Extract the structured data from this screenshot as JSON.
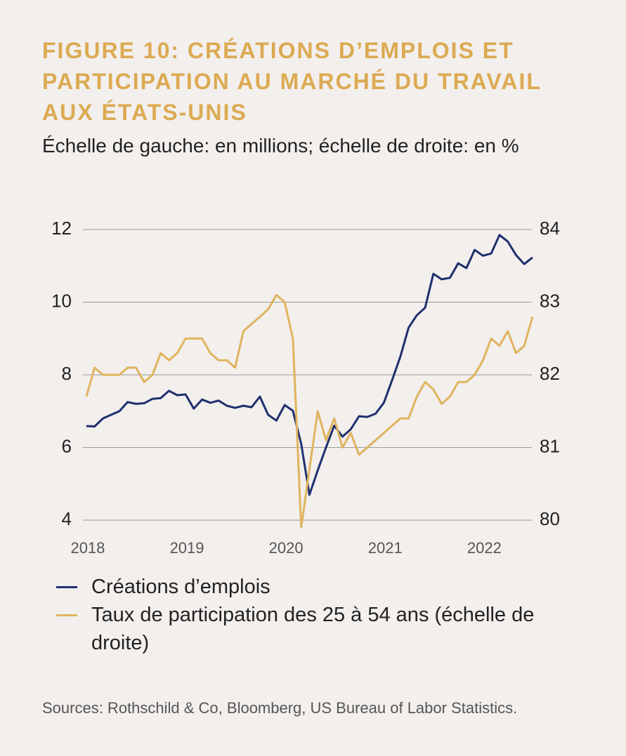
{
  "chart_data": {
    "type": "line",
    "title": "FIGURE 10: CRÉATIONS D’EMPLOIS ET PARTICIPATION AU MARCHÉ DU TRAVAIL AUX ÉTATS-UNIS",
    "subtitle": "Échelle de gauche: en millions; échelle de droite: en %",
    "source": "Sources: Rothschild & Co, Bloomberg, US Bureau of Labor Statistics.",
    "x": [
      2018,
      2018.0833,
      2018.1667,
      2018.25,
      2018.3333,
      2018.4167,
      2018.5,
      2018.5833,
      2018.6667,
      2018.75,
      2018.8333,
      2018.9167,
      2019,
      2019.0833,
      2019.1667,
      2019.25,
      2019.3333,
      2019.4167,
      2019.5,
      2019.5833,
      2019.6667,
      2019.75,
      2019.8333,
      2019.9167,
      2020,
      2020.0833,
      2020.1667,
      2020.25,
      2020.3333,
      2020.4167,
      2020.5,
      2020.5833,
      2020.6667,
      2020.75,
      2020.8333,
      2020.9167,
      2021,
      2021.0833,
      2021.1667,
      2021.25,
      2021.3333,
      2021.4167,
      2021.5,
      2021.5833,
      2021.6667,
      2021.75,
      2021.8333,
      2021.9167,
      2022,
      2022.0833,
      2022.1667,
      2022.25,
      2022.3333,
      2022.4167,
      2022.5
    ],
    "series": [
      {
        "name": "Créations d’emplois",
        "color": "#1f2f6e",
        "axis": "y",
        "values": [
          6.59,
          6.58,
          6.8,
          6.9,
          7.0,
          7.25,
          7.2,
          7.22,
          7.34,
          7.36,
          7.56,
          7.44,
          7.46,
          7.07,
          7.32,
          7.23,
          7.29,
          7.15,
          7.09,
          7.15,
          7.11,
          7.4,
          6.9,
          6.74,
          7.17,
          7.01,
          6.1,
          4.7,
          5.37,
          6.0,
          6.6,
          6.3,
          6.5,
          6.86,
          6.84,
          6.93,
          7.23,
          7.85,
          8.5,
          9.3,
          9.64,
          9.85,
          10.78,
          10.63,
          10.67,
          11.07,
          10.94,
          11.44,
          11.28,
          11.34,
          11.85,
          11.67,
          11.3,
          11.05,
          11.23
        ]
      },
      {
        "name": "Taux de participation des 25 à 54 ans (échelle de droite)",
        "color": "#e0b45e",
        "axis": "y2",
        "values": [
          81.7,
          82.1,
          82.0,
          82.0,
          82.0,
          82.1,
          82.1,
          81.9,
          82.0,
          82.3,
          82.2,
          82.3,
          82.5,
          82.5,
          82.5,
          82.3,
          82.2,
          82.2,
          82.1,
          82.6,
          82.7,
          82.8,
          82.9,
          83.1,
          83.0,
          82.5,
          79.9,
          80.7,
          81.5,
          81.1,
          81.4,
          81.0,
          81.2,
          80.9,
          81.0,
          81.1,
          81.2,
          81.3,
          81.4,
          81.4,
          81.7,
          81.9,
          81.8,
          81.6,
          81.7,
          81.9,
          81.9,
          82.0,
          82.2,
          82.5,
          82.4,
          82.6,
          82.3,
          82.4,
          82.8
        ]
      }
    ],
    "xlim": [
      2017.965,
      2022.55
    ],
    "xticks": [
      2018,
      2019,
      2020,
      2021,
      2022
    ],
    "ylim": [
      4,
      12
    ],
    "yticks": [
      4,
      6,
      8,
      10,
      12
    ],
    "y2lim": [
      80,
      84
    ],
    "y2ticks": [
      80,
      81,
      82,
      83,
      84
    ],
    "grid": true
  }
}
